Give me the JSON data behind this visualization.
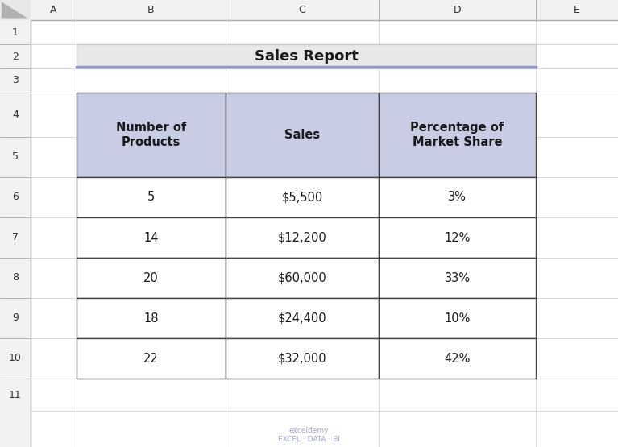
{
  "title": "Sales Report",
  "col_headers": [
    "Number of\nProducts",
    "Sales",
    "Percentage of\nMarket Share"
  ],
  "rows": [
    [
      "5",
      "$5,500",
      "3%"
    ],
    [
      "14",
      "$12,200",
      "12%"
    ],
    [
      "20",
      "$60,000",
      "33%"
    ],
    [
      "18",
      "$24,400",
      "10%"
    ],
    [
      "22",
      "$32,000",
      "42%"
    ]
  ],
  "row_labels": [
    "1",
    "2",
    "3",
    "4",
    "5",
    "6",
    "7",
    "8",
    "9",
    "10",
    "11"
  ],
  "col_labels": [
    "",
    "A",
    "B",
    "C",
    "D",
    "E"
  ],
  "header_bg": "#c8cce4",
  "header_border": "#8e99c9",
  "cell_bg": "#ffffff",
  "grid_color": "#c0c0c0",
  "border_color": "#444444",
  "title_bg": "#e8e8e8",
  "title_border": "#8e99c9",
  "title_color": "#1f1f1f",
  "spreadsheet_bg": "#ffffff",
  "row_header_bg": "#f2f2f2",
  "col_header_bg": "#f2f2f2",
  "watermark_color": "#a0a8c8",
  "fig_width": 7.67,
  "fig_height": 5.55
}
